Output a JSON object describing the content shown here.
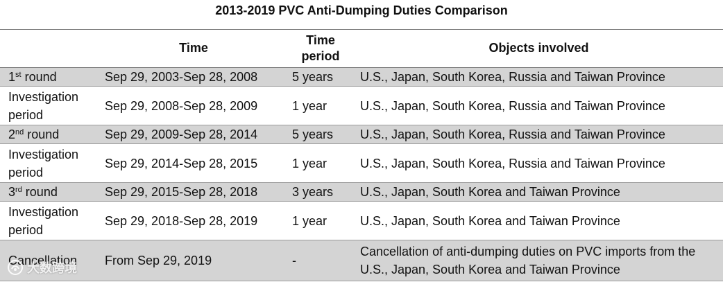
{
  "document": {
    "title": "2013-2019 PVC Anti-Dumping Duties Comparison"
  },
  "table": {
    "headers": {
      "phase": "",
      "time": "Time",
      "time_period": "Time period",
      "objects": "Objects involved"
    },
    "rows": [
      {
        "phase_num": "1",
        "phase_sup": "st",
        "phase_rest": " round",
        "time": "Sep 29, 2003-Sep 28, 2008",
        "period": "5 years",
        "objects": "U.S., Japan, South Korea, Russia and Taiwan Province"
      },
      {
        "phase": "Investigation period",
        "time": "Sep 29, 2008-Sep 28, 2009",
        "period": "1 year",
        "objects": "U.S., Japan, South Korea, Russia and Taiwan Province"
      },
      {
        "phase_num": "2",
        "phase_sup": "nd",
        "phase_rest": " round",
        "time": "Sep 29, 2009-Sep 28, 2014",
        "period": "5 years",
        "objects": "U.S., Japan, South Korea, Russia and Taiwan Province"
      },
      {
        "phase": "Investigation period",
        "time": "Sep 29, 2014-Sep 28, 2015",
        "period": "1 year",
        "objects": "U.S., Japan, South Korea, Russia and Taiwan Province"
      },
      {
        "phase_num": "3",
        "phase_sup": "rd",
        "phase_rest": " round",
        "time": "Sep 29, 2015-Sep 28, 2018",
        "period": "3 years",
        "objects": "U.S., Japan, South Korea and Taiwan Province"
      },
      {
        "phase": "Investigation period",
        "time": "Sep 29, 2018-Sep 28, 2019",
        "period": "1 year",
        "objects": "U.S., Japan, South Korea and Taiwan Province"
      },
      {
        "phase": "Cancellation",
        "time": "From Sep 29, 2019",
        "period": "-",
        "objects": "Cancellation of anti-dumping duties on PVC imports from the U.S., Japan, South Korea and Taiwan Province"
      }
    ]
  },
  "watermark": {
    "text": "大数跨境",
    "icon": "brand-logo-icon"
  },
  "colors": {
    "shaded_row": "#d4d4d4",
    "rule": "#9a9a9a"
  }
}
